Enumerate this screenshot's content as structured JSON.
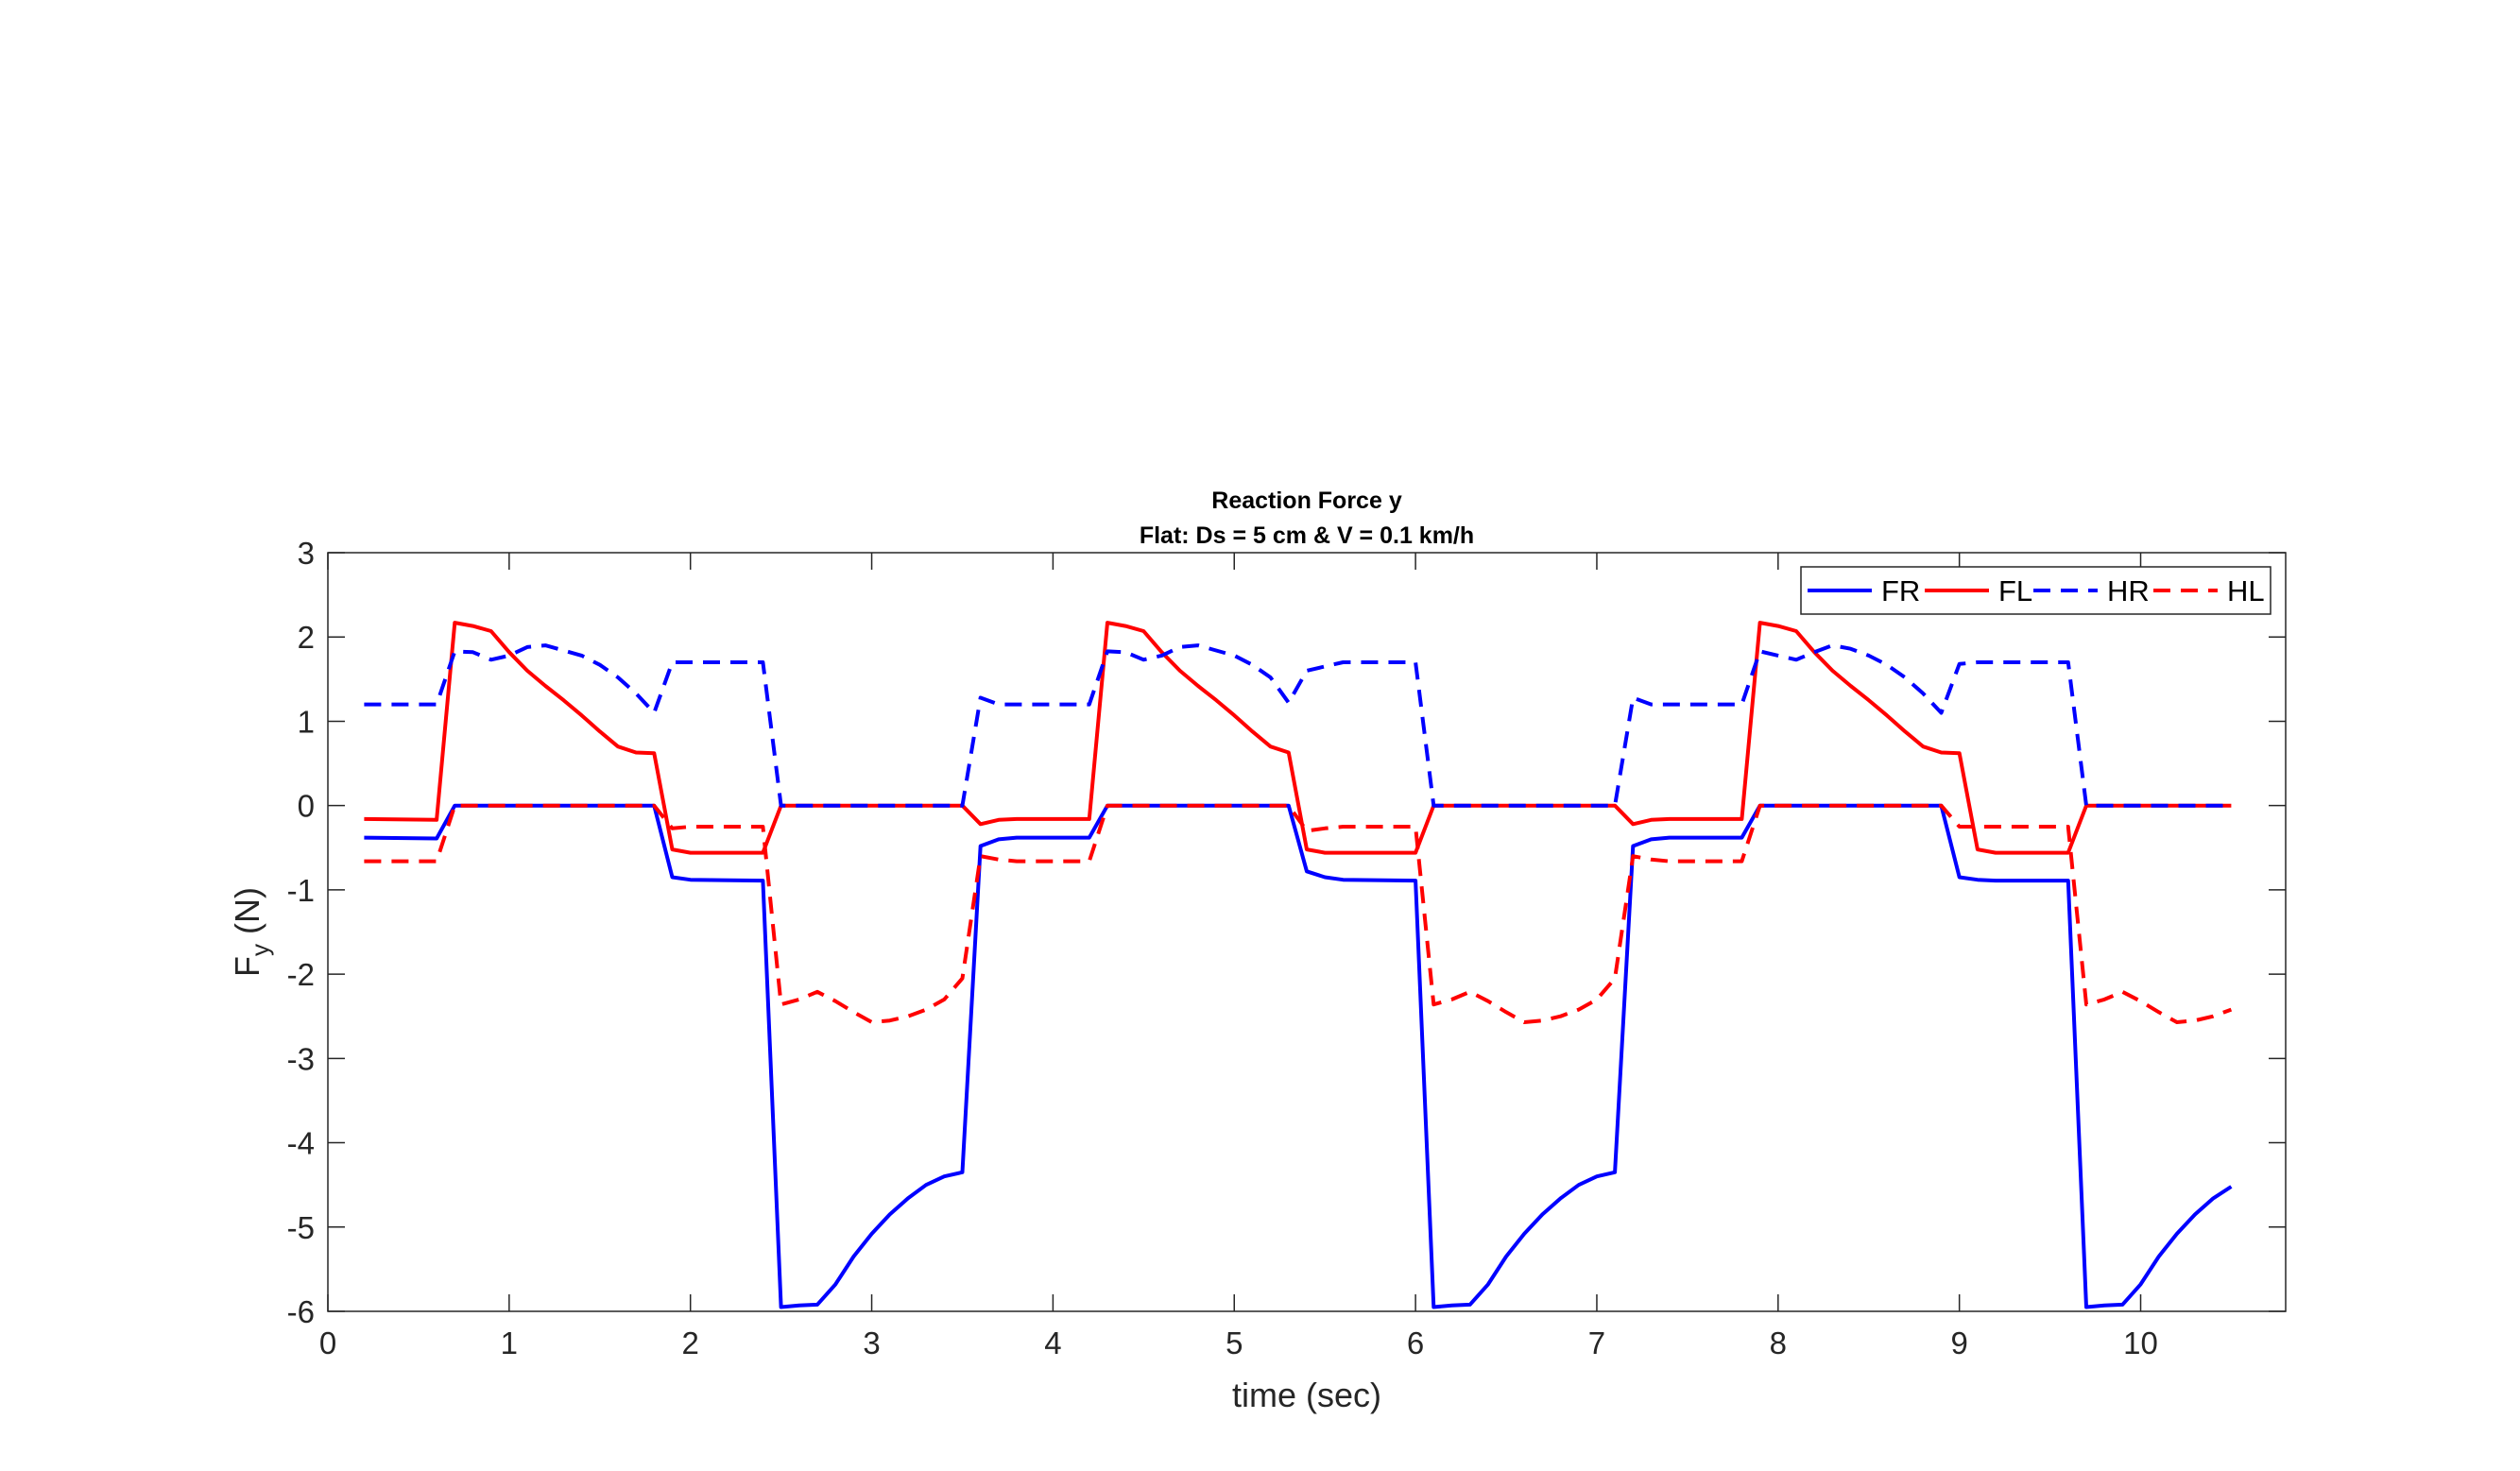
{
  "chart_data": {
    "type": "line",
    "title": "Reaction Force y",
    "subtitle": "Flat: Ds = 5 cm & V = 0.1 km/h",
    "xlabel": "time (sec)",
    "ylabel": "F",
    "ylabel_subscript": "y",
    "ylabel_unit": " (N)",
    "xlim": [
      0,
      10.8
    ],
    "ylim": [
      -6,
      3
    ],
    "xticks": [
      0,
      1,
      2,
      3,
      4,
      5,
      6,
      7,
      8,
      9,
      10
    ],
    "yticks": [
      -6,
      -5,
      -4,
      -3,
      -2,
      -1,
      0,
      1,
      2,
      3
    ],
    "grid": false,
    "legend_position": "top-right",
    "legend_orientation": "horizontal",
    "series": [
      {
        "name": "FR",
        "color": "#0000ff",
        "dash": "solid",
        "x": [
          0.2,
          0.6,
          0.7,
          1.0,
          1.8,
          1.9,
          2.0,
          2.4,
          2.5,
          2.6,
          2.7,
          2.8,
          2.9,
          3.0,
          3.1,
          3.2,
          3.3,
          3.4,
          3.5,
          3.6,
          3.7,
          3.8,
          4.0,
          4.2,
          4.3,
          5.3,
          5.4,
          5.5,
          5.6,
          6.0,
          6.1,
          6.2,
          6.3,
          6.4,
          6.5,
          6.6,
          6.7,
          6.8,
          6.9,
          7.0,
          7.1,
          7.2,
          7.3,
          7.4,
          7.6,
          7.8,
          7.9,
          8.9,
          9.0,
          9.1,
          9.2,
          9.6,
          9.7,
          9.8,
          9.9,
          10.0,
          10.1,
          10.2,
          10.3,
          10.4,
          10.5
        ],
        "y": [
          -0.38,
          -0.39,
          0.0,
          0.0,
          0.0,
          -0.85,
          -0.88,
          -0.89,
          -5.95,
          -5.93,
          -5.92,
          -5.68,
          -5.35,
          -5.08,
          -4.85,
          -4.66,
          -4.5,
          -4.4,
          -4.35,
          -0.48,
          -0.4,
          -0.38,
          -0.38,
          -0.38,
          0.0,
          0.0,
          -0.78,
          -0.85,
          -0.88,
          -0.89,
          -5.95,
          -5.93,
          -5.92,
          -5.68,
          -5.35,
          -5.08,
          -4.85,
          -4.66,
          -4.5,
          -4.4,
          -4.35,
          -0.48,
          -0.4,
          -0.38,
          -0.38,
          -0.38,
          0.0,
          0.0,
          -0.85,
          -0.88,
          -0.89,
          -0.89,
          -5.95,
          -5.93,
          -5.92,
          -5.68,
          -5.35,
          -5.08,
          -4.85,
          -4.66,
          -4.52
        ]
      },
      {
        "name": "FL",
        "color": "#ff0000",
        "dash": "solid",
        "x": [
          0.2,
          0.6,
          0.7,
          0.8,
          0.9,
          1.0,
          1.1,
          1.2,
          1.3,
          1.4,
          1.5,
          1.6,
          1.7,
          1.8,
          1.9,
          2.0,
          2.4,
          2.5,
          3.5,
          3.6,
          3.7,
          3.8,
          4.2,
          4.3,
          4.4,
          4.5,
          4.6,
          4.7,
          4.8,
          4.9,
          5.0,
          5.1,
          5.2,
          5.3,
          5.4,
          5.5,
          5.6,
          6.0,
          6.1,
          7.1,
          7.2,
          7.3,
          7.4,
          7.8,
          7.9,
          8.0,
          8.1,
          8.2,
          8.3,
          8.4,
          8.5,
          8.6,
          8.7,
          8.8,
          8.9,
          9.0,
          9.1,
          9.2,
          9.6,
          9.7,
          10.5
        ],
        "y": [
          -0.16,
          -0.17,
          2.17,
          2.13,
          2.07,
          1.82,
          1.6,
          1.42,
          1.25,
          1.07,
          0.88,
          0.7,
          0.63,
          0.62,
          -0.52,
          -0.56,
          -0.56,
          0.0,
          0.0,
          -0.22,
          -0.17,
          -0.16,
          -0.16,
          2.17,
          2.13,
          2.07,
          1.82,
          1.6,
          1.42,
          1.25,
          1.07,
          0.88,
          0.7,
          0.63,
          -0.52,
          -0.56,
          -0.56,
          -0.56,
          0.0,
          0.0,
          -0.22,
          -0.17,
          -0.16,
          -0.16,
          2.17,
          2.13,
          2.07,
          1.82,
          1.6,
          1.42,
          1.25,
          1.07,
          0.88,
          0.7,
          0.63,
          0.62,
          -0.52,
          -0.56,
          -0.56,
          0.0,
          0.0
        ]
      },
      {
        "name": "HR",
        "color": "#0000ff",
        "dash": "dashed",
        "x": [
          0.2,
          0.6,
          0.7,
          0.8,
          0.9,
          1.0,
          1.1,
          1.2,
          1.3,
          1.4,
          1.5,
          1.6,
          1.7,
          1.8,
          1.9,
          2.0,
          2.4,
          2.5,
          3.5,
          3.6,
          3.7,
          3.8,
          4.2,
          4.3,
          4.4,
          4.5,
          4.6,
          4.7,
          4.8,
          4.9,
          5.0,
          5.1,
          5.2,
          5.3,
          5.4,
          5.5,
          5.6,
          6.0,
          6.1,
          7.1,
          7.2,
          7.3,
          7.4,
          7.8,
          7.9,
          8.0,
          8.1,
          8.2,
          8.3,
          8.4,
          8.5,
          8.6,
          8.7,
          8.8,
          8.9,
          9.0,
          9.1,
          9.2,
          9.6,
          9.7,
          10.5
        ],
        "y": [
          1.2,
          1.2,
          1.83,
          1.82,
          1.73,
          1.78,
          1.88,
          1.9,
          1.84,
          1.78,
          1.67,
          1.52,
          1.33,
          1.1,
          1.7,
          1.7,
          1.7,
          0.0,
          0.0,
          1.28,
          1.2,
          1.2,
          1.2,
          1.83,
          1.82,
          1.73,
          1.78,
          1.88,
          1.9,
          1.84,
          1.78,
          1.67,
          1.52,
          1.22,
          1.6,
          1.65,
          1.7,
          1.7,
          0.0,
          0.0,
          1.28,
          1.2,
          1.2,
          1.2,
          1.83,
          1.78,
          1.73,
          1.82,
          1.9,
          1.86,
          1.78,
          1.67,
          1.52,
          1.33,
          1.1,
          1.68,
          1.7,
          1.7,
          1.7,
          0.0,
          0.0
        ]
      },
      {
        "name": "HL",
        "color": "#ff0000",
        "dash": "dashed",
        "x": [
          0.2,
          0.6,
          0.7,
          1.8,
          1.9,
          2.0,
          2.4,
          2.5,
          2.6,
          2.7,
          2.8,
          2.9,
          3.0,
          3.1,
          3.2,
          3.3,
          3.4,
          3.5,
          3.6,
          3.7,
          3.8,
          4.2,
          4.3,
          5.3,
          5.4,
          5.5,
          5.6,
          6.0,
          6.1,
          6.2,
          6.3,
          6.4,
          6.5,
          6.6,
          6.7,
          6.8,
          6.9,
          7.0,
          7.1,
          7.2,
          7.3,
          7.4,
          7.8,
          7.9,
          8.9,
          9.0,
          9.1,
          9.6,
          9.7,
          9.8,
          9.9,
          10.0,
          10.1,
          10.2,
          10.3,
          10.4,
          10.5
        ],
        "y": [
          -0.66,
          -0.66,
          0.0,
          0.0,
          -0.27,
          -0.25,
          -0.25,
          -2.36,
          -2.3,
          -2.21,
          -2.32,
          -2.45,
          -2.57,
          -2.55,
          -2.5,
          -2.42,
          -2.3,
          -2.05,
          -0.6,
          -0.64,
          -0.66,
          -0.66,
          0.0,
          0.0,
          -0.3,
          -0.27,
          -0.25,
          -0.25,
          -2.36,
          -2.3,
          -2.21,
          -2.32,
          -2.45,
          -2.57,
          -2.55,
          -2.5,
          -2.42,
          -2.3,
          -2.05,
          -0.6,
          -0.64,
          -0.66,
          -0.66,
          0.0,
          0.0,
          -0.25,
          -0.25,
          -0.25,
          -2.36,
          -2.3,
          -2.21,
          -2.32,
          -2.45,
          -2.57,
          -2.55,
          -2.5,
          -2.42
        ]
      }
    ]
  }
}
